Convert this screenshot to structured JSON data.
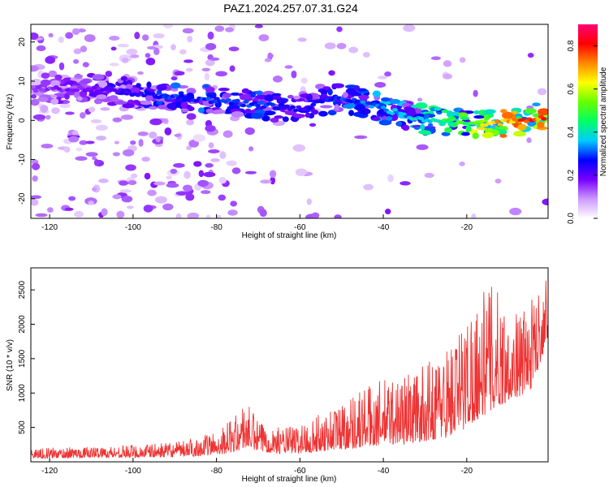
{
  "title": "PAZ1.2024.257.07.31.G24",
  "chart_data": [
    {
      "type": "heatmap",
      "xlabel": "Height of straight line (km)",
      "ylabel": "Frequency (Hz)",
      "xlim": [
        -124.5,
        -0.5
      ],
      "ylim": [
        -25,
        24.5
      ],
      "xticks": [
        -120,
        -100,
        -80,
        -60,
        -40,
        -20
      ],
      "yticks": [
        -20,
        -10,
        0,
        10,
        20
      ],
      "colorbar": {
        "label": "Normalized spectral amplitude",
        "range": [
          0,
          0.9
        ],
        "ticks": [
          0.0,
          0.2,
          0.4,
          0.6,
          0.8
        ],
        "colors": [
          "#ffffff",
          "#cc99ff",
          "#7700ff",
          "#0000ff",
          "#00ccff",
          "#00ff66",
          "#66ff00",
          "#ffff00",
          "#ff8800",
          "#ff0000",
          "#ff0077"
        ]
      },
      "ridge": {
        "x": [
          -124,
          -110,
          -100,
          -90,
          -80,
          -70,
          -60,
          -50,
          -40,
          -30,
          -20,
          -10,
          -1
        ],
        "y": [
          8,
          8,
          7,
          6,
          5,
          4,
          3,
          6,
          3,
          0,
          -1,
          -0.5,
          1
        ],
        "amplitude": [
          0.15,
          0.2,
          0.25,
          0.3,
          0.3,
          0.3,
          0.25,
          0.3,
          0.35,
          0.4,
          0.55,
          0.75,
          0.85
        ]
      },
      "grid": false
    },
    {
      "type": "line",
      "xlabel": "Height of straight line (km)",
      "ylabel": "SNR (10 * v/v)",
      "xlim": [
        -124.5,
        -0.5
      ],
      "ylim": [
        0,
        2820
      ],
      "xticks": [
        -120,
        -100,
        -80,
        -60,
        -40,
        -20
      ],
      "yticks": [
        500,
        1000,
        1500,
        2000,
        2500
      ],
      "color": "#ee3333",
      "envelope": {
        "x": [
          -124,
          -110,
          -100,
          -90,
          -85,
          -80,
          -75,
          -73,
          -70,
          -65,
          -60,
          -55,
          -50,
          -45,
          -40,
          -35,
          -30,
          -25,
          -22,
          -20,
          -18,
          -15,
          -12,
          -10,
          -5,
          -2,
          -1
        ],
        "low": [
          50,
          60,
          60,
          70,
          80,
          100,
          150,
          200,
          150,
          120,
          120,
          150,
          180,
          200,
          250,
          250,
          300,
          350,
          400,
          500,
          600,
          700,
          800,
          900,
          1000,
          1500,
          1800
        ],
        "high": [
          200,
          220,
          250,
          280,
          350,
          450,
          700,
          900,
          600,
          500,
          550,
          700,
          900,
          1100,
          1200,
          1300,
          1400,
          1700,
          1900,
          2200,
          2300,
          2600,
          2500,
          2100,
          2300,
          2600,
          2800
        ]
      },
      "grid": false
    }
  ]
}
